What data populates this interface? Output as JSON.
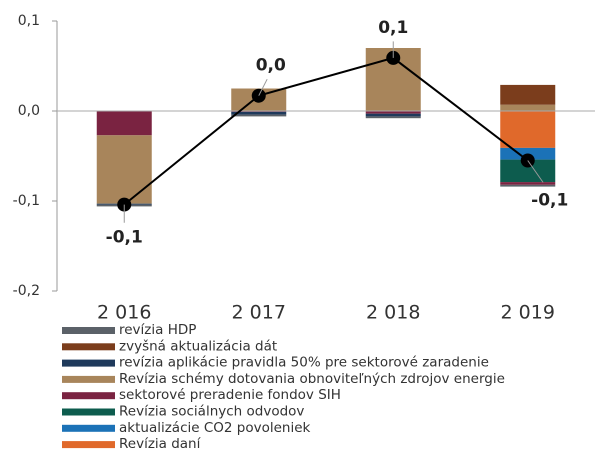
{
  "chart_data": {
    "type": "bar",
    "stacked": true,
    "categories": [
      "2 016",
      "2 017",
      "2 018",
      "2 019"
    ],
    "series": [
      {
        "name": "revízia HDP",
        "color": "#5b6168",
        "values": [
          -0.002,
          -0.002,
          -0.002,
          -0.002
        ]
      },
      {
        "name": "zvyšná aktualizácia dát",
        "color": "#7b3d1c",
        "values": [
          0,
          0,
          0,
          0.022
        ]
      },
      {
        "name": "revízia aplikácie pravidla 50% pre sektorové zaradenie",
        "color": "#1f3a5c",
        "values": [
          -0.001,
          -0.003,
          -0.003,
          0
        ]
      },
      {
        "name": "Revízia schémy dotovania obnoviteľných zdrojov energie",
        "color": "#a8855b",
        "values": [
          -0.076,
          0.025,
          0.07,
          0.007
        ]
      },
      {
        "name": "sektorové preradenie fondov SIH",
        "color": "#7a2341",
        "values": [
          -0.027,
          -0.001,
          -0.003,
          -0.003
        ]
      },
      {
        "name": "Revízia sociálnych odvodov",
        "color": "#0d5c4e",
        "values": [
          0,
          0,
          0,
          -0.025
        ]
      },
      {
        "name": "aktualizácie CO2 povoleniek",
        "color": "#1b72b7",
        "values": [
          0,
          0,
          0,
          -0.013
        ]
      },
      {
        "name": "Revízia daní",
        "color": "#e0692b",
        "values": [
          0,
          0,
          0,
          -0.041
        ]
      }
    ],
    "line": {
      "color": "#000000",
      "values": [
        -0.104,
        0.017,
        0.059,
        -0.055
      ],
      "value_labels": [
        "-0,1",
        "0,0",
        "0,1",
        "-0,1"
      ]
    },
    "ylim": [
      -0.2,
      0.1
    ],
    "yticks": [
      {
        "value": -0.2,
        "label": "-0,2"
      },
      {
        "value": -0.1,
        "label": "-0,1"
      },
      {
        "value": 0,
        "label": "0,0"
      },
      {
        "value": 0.1,
        "label": "0,1"
      }
    ]
  }
}
